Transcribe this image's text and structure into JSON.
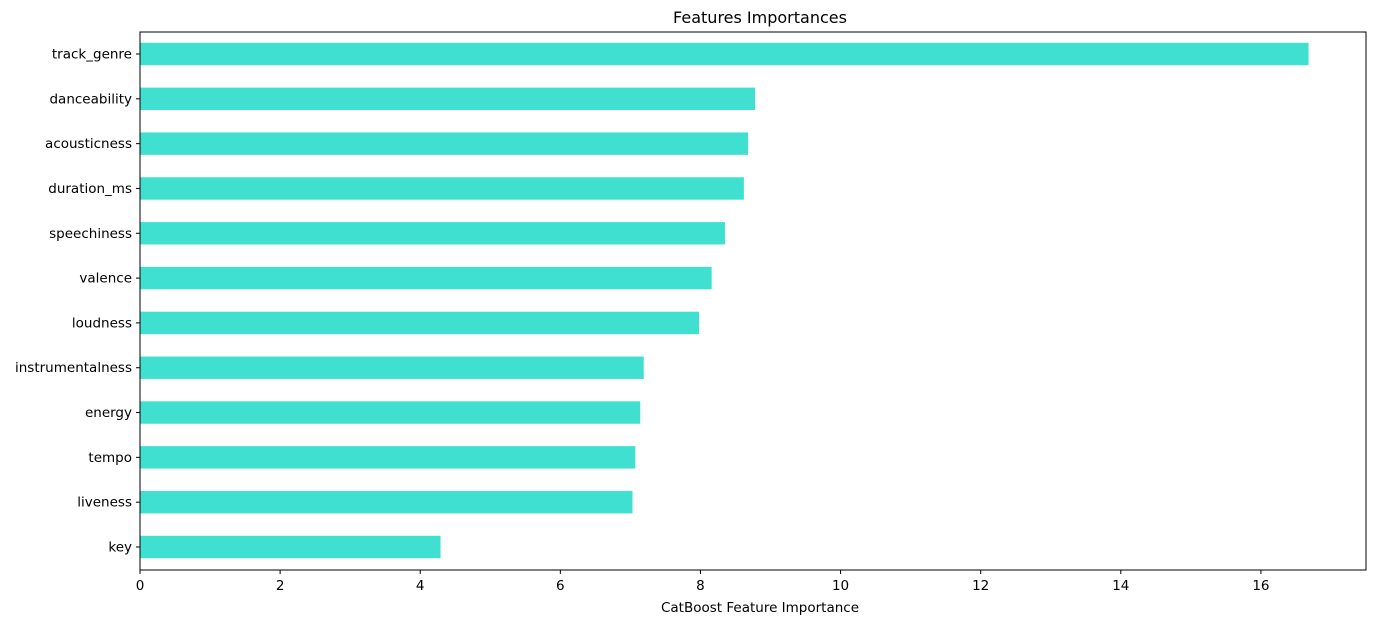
{
  "chart_data": {
    "type": "bar",
    "orientation": "horizontal",
    "title": "Features Importances",
    "xlabel": "CatBoost Feature Importance",
    "ylabel": "",
    "xlim": [
      0,
      17.5
    ],
    "xticks": [
      0,
      2,
      4,
      6,
      8,
      10,
      12,
      14,
      16
    ],
    "grid": false,
    "bar_color": "#40E0D0",
    "categories": [
      "track_genre",
      "danceability",
      "acousticness",
      "duration_ms",
      "speechiness",
      "valence",
      "loudness",
      "instrumentalness",
      "energy",
      "tempo",
      "liveness",
      "key"
    ],
    "values": [
      16.68,
      8.78,
      8.68,
      8.62,
      8.35,
      8.16,
      7.98,
      7.19,
      7.14,
      7.07,
      7.03,
      4.29
    ]
  }
}
